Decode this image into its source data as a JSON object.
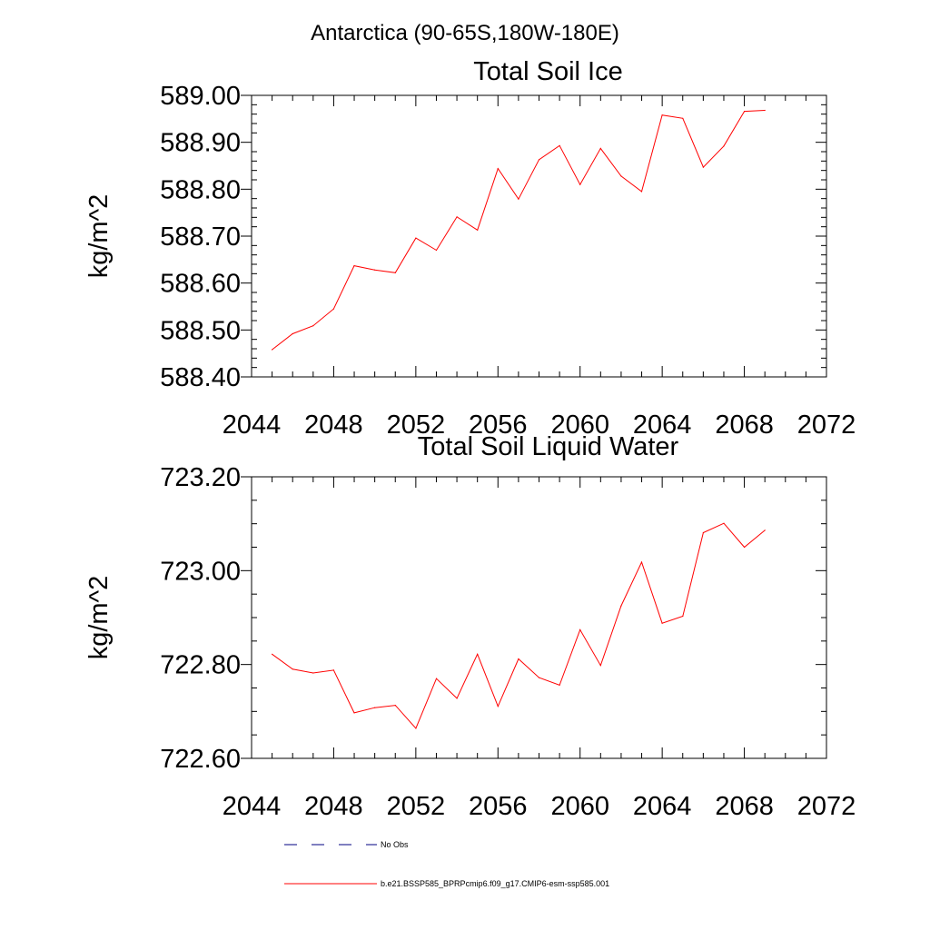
{
  "suptitle": "Antarctica (90-65S,180W-180E)",
  "colors": {
    "background": "#ffffff",
    "axis": "#000000",
    "series_model": "#ff0000",
    "series_obs": "#000080"
  },
  "chart_data": [
    {
      "type": "line",
      "title": "Total Soil Ice",
      "xlabel": "",
      "ylabel": "kg/m^2",
      "xlim": [
        2044,
        2072
      ],
      "ylim": [
        588.4,
        589.0
      ],
      "xticks": [
        2044,
        2048,
        2052,
        2056,
        2060,
        2064,
        2068,
        2072
      ],
      "xtick_labels": [
        "2044",
        "2048",
        "2052",
        "2056",
        "2060",
        "2064",
        "2068",
        "2072"
      ],
      "yticks": [
        588.4,
        588.5,
        588.6,
        588.7,
        588.8,
        588.9,
        589.0
      ],
      "ytick_labels": [
        "588.40",
        "588.50",
        "588.60",
        "588.70",
        "588.80",
        "588.90",
        "589.00"
      ],
      "x_minor_step": 1,
      "y_minor_step": 0.02,
      "grid": false,
      "series": [
        {
          "name": "b.e21.BSSP585_BPRPcmip6.f09_g17.CMIP6-esm-ssp585.001",
          "color": "#ff0000",
          "x": [
            2045,
            2046,
            2047,
            2048,
            2049,
            2050,
            2051,
            2052,
            2053,
            2054,
            2055,
            2056,
            2057,
            2058,
            2059,
            2060,
            2061,
            2062,
            2063,
            2064,
            2065,
            2066,
            2067,
            2068,
            2069
          ],
          "values": [
            588.458,
            588.492,
            588.509,
            588.545,
            588.637,
            588.628,
            588.622,
            588.696,
            588.67,
            588.741,
            588.713,
            588.844,
            588.779,
            588.863,
            588.893,
            588.81,
            588.887,
            588.828,
            588.795,
            588.958,
            588.951,
            588.847,
            588.892,
            588.966,
            588.968
          ]
        }
      ]
    },
    {
      "type": "line",
      "title": "Total Soil Liquid Water",
      "xlabel": "",
      "ylabel": "kg/m^2",
      "xlim": [
        2044,
        2072
      ],
      "ylim": [
        722.6,
        723.2
      ],
      "xticks": [
        2044,
        2048,
        2052,
        2056,
        2060,
        2064,
        2068,
        2072
      ],
      "xtick_labels": [
        "2044",
        "2048",
        "2052",
        "2056",
        "2060",
        "2064",
        "2068",
        "2072"
      ],
      "yticks": [
        722.6,
        722.8,
        723.0,
        723.2
      ],
      "ytick_labels": [
        "722.60",
        "722.80",
        "723.00",
        "723.20"
      ],
      "x_minor_step": 1,
      "y_minor_step": 0.05,
      "grid": false,
      "series": [
        {
          "name": "b.e21.BSSP585_BPRPcmip6.f09_g17.CMIP6-esm-ssp585.001",
          "color": "#ff0000",
          "x": [
            2045,
            2046,
            2047,
            2048,
            2049,
            2050,
            2051,
            2052,
            2053,
            2054,
            2055,
            2056,
            2057,
            2058,
            2059,
            2060,
            2061,
            2062,
            2063,
            2064,
            2065,
            2066,
            2067,
            2068,
            2069
          ],
          "values": [
            722.822,
            722.79,
            722.782,
            722.788,
            722.697,
            722.708,
            722.713,
            722.664,
            722.77,
            722.728,
            722.822,
            722.711,
            722.812,
            722.772,
            722.756,
            722.874,
            722.798,
            722.925,
            723.018,
            722.888,
            722.903,
            723.081,
            723.101,
            723.05,
            723.086
          ]
        }
      ]
    }
  ],
  "legend": {
    "placement": "bottom",
    "entries": [
      {
        "label": "No Obs",
        "style": "dashed",
        "color": "#000080"
      },
      {
        "label": "b.e21.BSSP585_BPRPcmip6.f09_g17.CMIP6-esm-ssp585.001",
        "style": "solid",
        "color": "#ff0000"
      }
    ]
  }
}
